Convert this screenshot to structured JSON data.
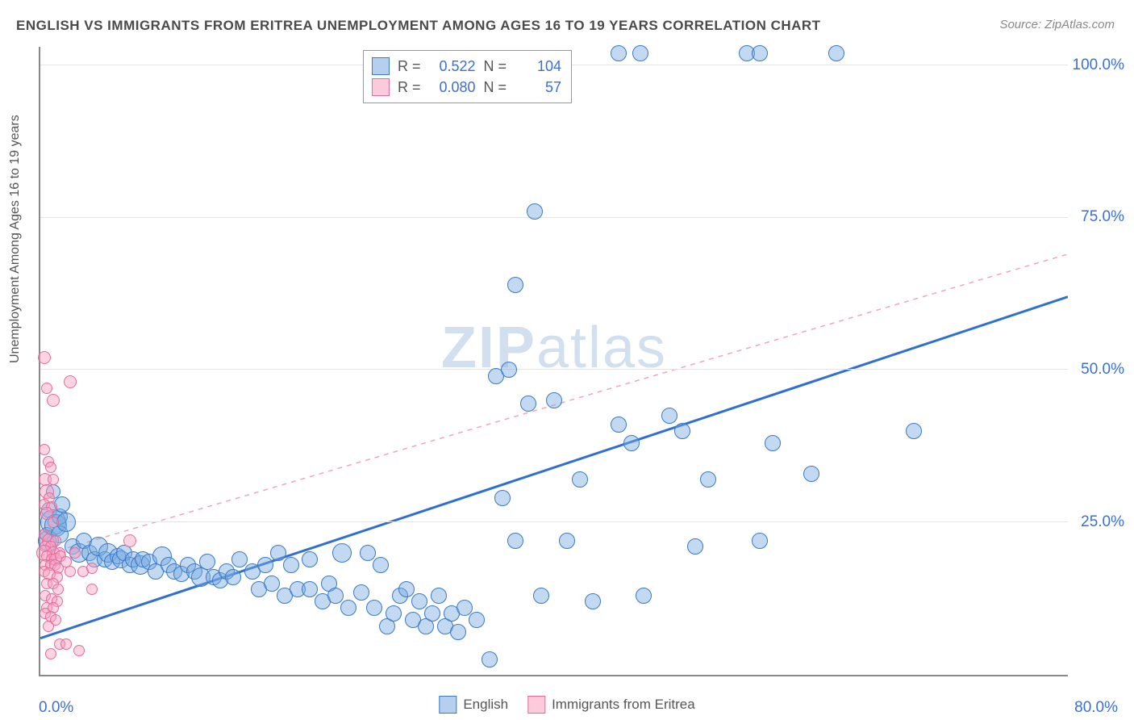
{
  "title": "ENGLISH VS IMMIGRANTS FROM ERITREA UNEMPLOYMENT AMONG AGES 16 TO 19 YEARS CORRELATION CHART",
  "source_label": "Source: ZipAtlas.com",
  "y_axis_label": "Unemployment Among Ages 16 to 19 years",
  "watermark_bold": "ZIP",
  "watermark_rest": "atlas",
  "chart": {
    "type": "scatter",
    "xlim": [
      0,
      80
    ],
    "ylim": [
      0,
      103
    ],
    "x_ticks": [
      {
        "v": 0,
        "label": "0.0%"
      },
      {
        "v": 80,
        "label": "80.0%"
      }
    ],
    "y_ticks": [
      {
        "v": 25,
        "label": "25.0%"
      },
      {
        "v": 50,
        "label": "50.0%"
      },
      {
        "v": 75,
        "label": "75.0%"
      },
      {
        "v": 100,
        "label": "100.0%"
      }
    ],
    "background_color": "#ffffff",
    "grid_color": "#e4e4e4",
    "axis_color": "#888888",
    "tick_label_color": "#3a6fd8",
    "series": [
      {
        "name": "English",
        "color_fill": "#78aae1",
        "color_stroke": "#3a7ac8",
        "fill_opacity": 0.45,
        "trend": {
          "x1": 0,
          "y1": 6,
          "x2": 80,
          "y2": 62,
          "dashed": false,
          "stroke": "#2f6fd1",
          "width": 3
        },
        "points": [
          {
            "x": 0.5,
            "y": 23,
            "r": 9
          },
          {
            "x": 0.6,
            "y": 22,
            "r": 13
          },
          {
            "x": 0.7,
            "y": 27,
            "r": 10
          },
          {
            "x": 1,
            "y": 30,
            "r": 9
          },
          {
            "x": 1,
            "y": 25,
            "r": 16
          },
          {
            "x": 1.2,
            "y": 24.5,
            "r": 14
          },
          {
            "x": 1.5,
            "y": 23,
            "r": 11
          },
          {
            "x": 1.5,
            "y": 26,
            "r": 10
          },
          {
            "x": 1.7,
            "y": 28,
            "r": 10
          },
          {
            "x": 2,
            "y": 25,
            "r": 12
          },
          {
            "x": 2.5,
            "y": 21,
            "r": 10
          },
          {
            "x": 3,
            "y": 20,
            "r": 12
          },
          {
            "x": 3.4,
            "y": 22,
            "r": 10
          },
          {
            "x": 3.8,
            "y": 20,
            "r": 10
          },
          {
            "x": 4.2,
            "y": 19,
            "r": 10
          },
          {
            "x": 4.5,
            "y": 21,
            "r": 12
          },
          {
            "x": 5,
            "y": 19,
            "r": 10
          },
          {
            "x": 5.3,
            "y": 20,
            "r": 12
          },
          {
            "x": 5.6,
            "y": 18.5,
            "r": 10
          },
          {
            "x": 6,
            "y": 19.5,
            "r": 10
          },
          {
            "x": 6.3,
            "y": 19,
            "r": 11
          },
          {
            "x": 6.5,
            "y": 20,
            "r": 10
          },
          {
            "x": 7,
            "y": 18,
            "r": 10
          },
          {
            "x": 7.2,
            "y": 19,
            "r": 10
          },
          {
            "x": 7.8,
            "y": 18,
            "r": 12
          },
          {
            "x": 8,
            "y": 19,
            "r": 10
          },
          {
            "x": 8.5,
            "y": 18.5,
            "r": 10
          },
          {
            "x": 9,
            "y": 17,
            "r": 10
          },
          {
            "x": 9.5,
            "y": 19.5,
            "r": 12
          },
          {
            "x": 10,
            "y": 18,
            "r": 10
          },
          {
            "x": 10.4,
            "y": 17,
            "r": 10
          },
          {
            "x": 11,
            "y": 16.5,
            "r": 10
          },
          {
            "x": 11.5,
            "y": 18,
            "r": 10
          },
          {
            "x": 12,
            "y": 17,
            "r": 10
          },
          {
            "x": 12.5,
            "y": 16,
            "r": 12
          },
          {
            "x": 13,
            "y": 18.5,
            "r": 10
          },
          {
            "x": 13.5,
            "y": 16,
            "r": 10
          },
          {
            "x": 14,
            "y": 15.5,
            "r": 10
          },
          {
            "x": 14.5,
            "y": 17,
            "r": 10
          },
          {
            "x": 15,
            "y": 16,
            "r": 10
          },
          {
            "x": 15.5,
            "y": 19,
            "r": 10
          },
          {
            "x": 16.5,
            "y": 17,
            "r": 10
          },
          {
            "x": 17,
            "y": 14,
            "r": 10
          },
          {
            "x": 17.5,
            "y": 18,
            "r": 10
          },
          {
            "x": 18,
            "y": 15,
            "r": 10
          },
          {
            "x": 18.5,
            "y": 20,
            "r": 10
          },
          {
            "x": 19,
            "y": 13,
            "r": 10
          },
          {
            "x": 19.5,
            "y": 18,
            "r": 10
          },
          {
            "x": 20,
            "y": 14,
            "r": 10
          },
          {
            "x": 21,
            "y": 19,
            "r": 10
          },
          {
            "x": 21,
            "y": 14,
            "r": 10
          },
          {
            "x": 22,
            "y": 12,
            "r": 10
          },
          {
            "x": 22.5,
            "y": 15,
            "r": 10
          },
          {
            "x": 23,
            "y": 13,
            "r": 10
          },
          {
            "x": 23.5,
            "y": 20,
            "r": 12
          },
          {
            "x": 24,
            "y": 11,
            "r": 10
          },
          {
            "x": 25,
            "y": 13.5,
            "r": 10
          },
          {
            "x": 25.5,
            "y": 20,
            "r": 10
          },
          {
            "x": 26,
            "y": 11,
            "r": 10
          },
          {
            "x": 26.5,
            "y": 18,
            "r": 10
          },
          {
            "x": 27,
            "y": 8,
            "r": 10
          },
          {
            "x": 27.5,
            "y": 10,
            "r": 10
          },
          {
            "x": 28,
            "y": 13,
            "r": 10
          },
          {
            "x": 28.5,
            "y": 14,
            "r": 10
          },
          {
            "x": 29,
            "y": 9,
            "r": 10
          },
          {
            "x": 29.5,
            "y": 12,
            "r": 10
          },
          {
            "x": 30,
            "y": 8,
            "r": 10
          },
          {
            "x": 30.5,
            "y": 10,
            "r": 10
          },
          {
            "x": 31,
            "y": 13,
            "r": 10
          },
          {
            "x": 31.5,
            "y": 8,
            "r": 10
          },
          {
            "x": 32,
            "y": 10,
            "r": 10
          },
          {
            "x": 32.5,
            "y": 7,
            "r": 10
          },
          {
            "x": 33,
            "y": 11,
            "r": 10
          },
          {
            "x": 34,
            "y": 9,
            "r": 10
          },
          {
            "x": 35,
            "y": 2.5,
            "r": 10
          },
          {
            "x": 35.5,
            "y": 49,
            "r": 10
          },
          {
            "x": 36,
            "y": 29,
            "r": 10
          },
          {
            "x": 36.5,
            "y": 50,
            "r": 10
          },
          {
            "x": 37,
            "y": 64,
            "r": 10
          },
          {
            "x": 37,
            "y": 22,
            "r": 10
          },
          {
            "x": 38,
            "y": 44.5,
            "r": 10
          },
          {
            "x": 38.5,
            "y": 76,
            "r": 10
          },
          {
            "x": 39,
            "y": 13,
            "r": 10
          },
          {
            "x": 40,
            "y": 45,
            "r": 10
          },
          {
            "x": 41,
            "y": 22,
            "r": 10
          },
          {
            "x": 42,
            "y": 32,
            "r": 10
          },
          {
            "x": 43,
            "y": 12,
            "r": 10
          },
          {
            "x": 45,
            "y": 41,
            "r": 10
          },
          {
            "x": 45,
            "y": 102,
            "r": 10
          },
          {
            "x": 46,
            "y": 38,
            "r": 10
          },
          {
            "x": 46.7,
            "y": 102,
            "r": 10
          },
          {
            "x": 47,
            "y": 13,
            "r": 10
          },
          {
            "x": 49,
            "y": 42.5,
            "r": 10
          },
          {
            "x": 50,
            "y": 40,
            "r": 10
          },
          {
            "x": 51,
            "y": 21,
            "r": 10
          },
          {
            "x": 52,
            "y": 32,
            "r": 10
          },
          {
            "x": 55,
            "y": 102,
            "r": 10
          },
          {
            "x": 56,
            "y": 102,
            "r": 10
          },
          {
            "x": 56,
            "y": 22,
            "r": 10
          },
          {
            "x": 57,
            "y": 38,
            "r": 10
          },
          {
            "x": 60,
            "y": 33,
            "r": 10
          },
          {
            "x": 62,
            "y": 102,
            "r": 10
          },
          {
            "x": 68,
            "y": 40,
            "r": 10
          }
        ]
      },
      {
        "name": "Immigrants from Eritrea",
        "color_fill": "#f8a0be",
        "color_stroke": "#e86a9a",
        "fill_opacity": 0.45,
        "trend": {
          "x1": 0,
          "y1": 19.5,
          "x2": 80,
          "y2": 69,
          "dashed": true,
          "stroke": "#f0a6b8",
          "width": 1.5
        },
        "points": [
          {
            "x": 0.3,
            "y": 52,
            "r": 8
          },
          {
            "x": 0.5,
            "y": 47,
            "r": 7
          },
          {
            "x": 1,
            "y": 45,
            "r": 8
          },
          {
            "x": 2.3,
            "y": 48,
            "r": 8
          },
          {
            "x": 0.3,
            "y": 37,
            "r": 7
          },
          {
            "x": 0.6,
            "y": 35,
            "r": 7
          },
          {
            "x": 0.8,
            "y": 34,
            "r": 7
          },
          {
            "x": 0.4,
            "y": 32,
            "r": 8
          },
          {
            "x": 1,
            "y": 32,
            "r": 7
          },
          {
            "x": 0.5,
            "y": 30,
            "r": 9
          },
          {
            "x": 0.7,
            "y": 29,
            "r": 7
          },
          {
            "x": 0.3,
            "y": 28,
            "r": 7
          },
          {
            "x": 0.9,
            "y": 27.5,
            "r": 7
          },
          {
            "x": 0.5,
            "y": 26.5,
            "r": 8
          },
          {
            "x": 1,
            "y": 25,
            "r": 7
          },
          {
            "x": 0.3,
            "y": 23,
            "r": 7
          },
          {
            "x": 0.7,
            "y": 22,
            "r": 9
          },
          {
            "x": 1.2,
            "y": 22,
            "r": 7
          },
          {
            "x": 0.4,
            "y": 21,
            "r": 7
          },
          {
            "x": 0.8,
            "y": 21,
            "r": 7
          },
          {
            "x": 0.3,
            "y": 20,
            "r": 10
          },
          {
            "x": 1,
            "y": 20,
            "r": 8
          },
          {
            "x": 1.5,
            "y": 20,
            "r": 7
          },
          {
            "x": 0.5,
            "y": 19.5,
            "r": 7
          },
          {
            "x": 0.9,
            "y": 19,
            "r": 7
          },
          {
            "x": 1.2,
            "y": 19,
            "r": 8
          },
          {
            "x": 1.6,
            "y": 19.5,
            "r": 7
          },
          {
            "x": 0.4,
            "y": 18,
            "r": 7
          },
          {
            "x": 0.8,
            "y": 18,
            "r": 7
          },
          {
            "x": 1.1,
            "y": 18,
            "r": 7
          },
          {
            "x": 1.4,
            "y": 17.5,
            "r": 7
          },
          {
            "x": 0.3,
            "y": 17,
            "r": 7
          },
          {
            "x": 0.7,
            "y": 16.5,
            "r": 8
          },
          {
            "x": 1.3,
            "y": 16,
            "r": 7
          },
          {
            "x": 2,
            "y": 18.5,
            "r": 7
          },
          {
            "x": 2.3,
            "y": 17,
            "r": 7
          },
          {
            "x": 2.7,
            "y": 20,
            "r": 7
          },
          {
            "x": 3.3,
            "y": 17,
            "r": 7
          },
          {
            "x": 4,
            "y": 17.5,
            "r": 7
          },
          {
            "x": 4,
            "y": 14,
            "r": 7
          },
          {
            "x": 0.5,
            "y": 15,
            "r": 7
          },
          {
            "x": 1,
            "y": 15,
            "r": 7
          },
          {
            "x": 1.4,
            "y": 14,
            "r": 7
          },
          {
            "x": 0.4,
            "y": 13,
            "r": 7
          },
          {
            "x": 0.9,
            "y": 12.5,
            "r": 7
          },
          {
            "x": 1.3,
            "y": 12,
            "r": 7
          },
          {
            "x": 0.5,
            "y": 11,
            "r": 7
          },
          {
            "x": 1,
            "y": 11,
            "r": 7
          },
          {
            "x": 0.4,
            "y": 10,
            "r": 7
          },
          {
            "x": 0.8,
            "y": 9.5,
            "r": 7
          },
          {
            "x": 1.2,
            "y": 9,
            "r": 7
          },
          {
            "x": 0.6,
            "y": 8,
            "r": 7
          },
          {
            "x": 1.5,
            "y": 5,
            "r": 7
          },
          {
            "x": 2,
            "y": 5,
            "r": 7
          },
          {
            "x": 0.8,
            "y": 3.5,
            "r": 7
          },
          {
            "x": 3,
            "y": 4,
            "r": 7
          },
          {
            "x": 7,
            "y": 22,
            "r": 8
          }
        ]
      }
    ]
  },
  "legend_top": {
    "rows": [
      {
        "swatch": "blue",
        "R_label": "R =",
        "R": "0.522",
        "N_label": "N =",
        "N": "104"
      },
      {
        "swatch": "pink",
        "R_label": "R =",
        "R": "0.080",
        "N_label": "N =",
        "N": "57"
      }
    ]
  },
  "legend_bottom": {
    "items": [
      {
        "swatch": "blue",
        "label": "English"
      },
      {
        "swatch": "pink",
        "label": "Immigrants from Eritrea"
      }
    ]
  }
}
